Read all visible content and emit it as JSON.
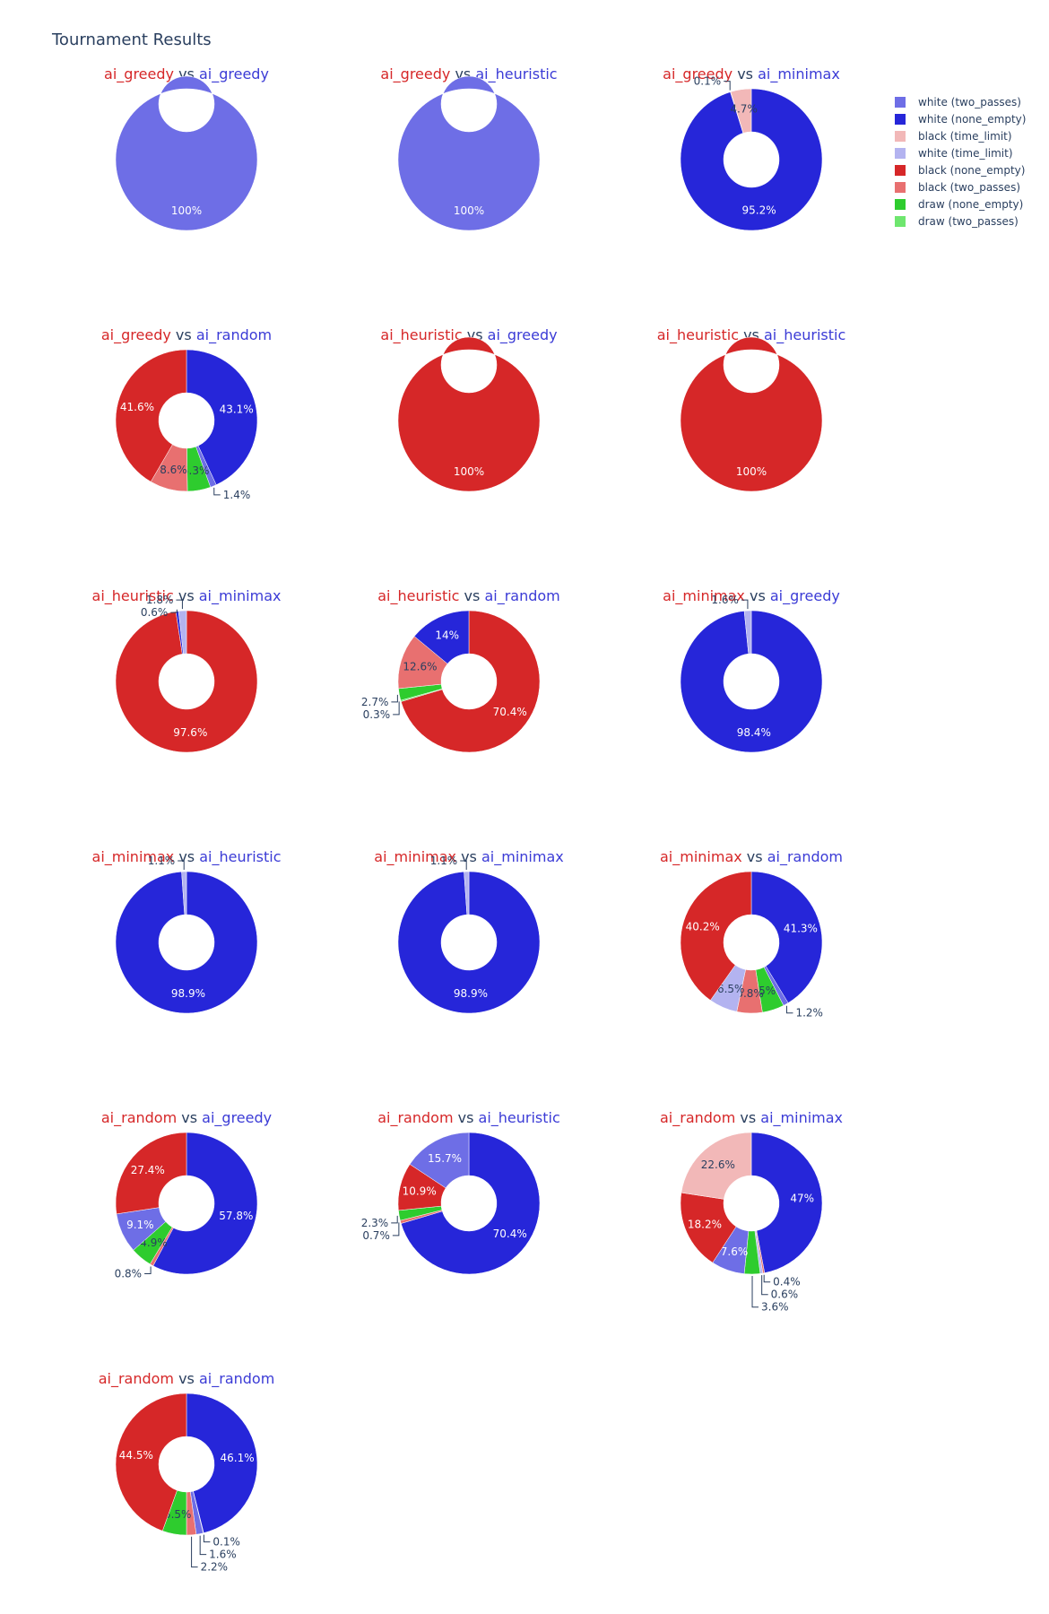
{
  "chart_data": {
    "type": "pie",
    "hole": true,
    "title": "Tournament Results",
    "vs_word": "vs",
    "colors": {
      "black_player": "#d62728",
      "white_player": "#3b3bd6",
      "vs": "#2a3f5f"
    },
    "legend_position": "top-right",
    "legend": [
      {
        "name": "white (two_passes)",
        "color": "#6e6ee6"
      },
      {
        "name": "white (none_empty)",
        "color": "#2626d9"
      },
      {
        "name": "black (time_limit)",
        "color": "#f2b8b8"
      },
      {
        "name": "white (time_limit)",
        "color": "#b3b3f0"
      },
      {
        "name": "black (none_empty)",
        "color": "#d62728"
      },
      {
        "name": "black (two_passes)",
        "color": "#e87070"
      },
      {
        "name": "draw (none_empty)",
        "color": "#2ecc2e"
      },
      {
        "name": "draw (two_passes)",
        "color": "#6ee66e"
      }
    ],
    "charts": [
      {
        "black": "ai_greedy",
        "white": "ai_greedy",
        "slices": [
          {
            "name": "white (two_passes)",
            "value": 100,
            "label": "100%"
          }
        ]
      },
      {
        "black": "ai_greedy",
        "white": "ai_heuristic",
        "slices": [
          {
            "name": "white (two_passes)",
            "value": 100,
            "label": "100%"
          }
        ]
      },
      {
        "black": "ai_greedy",
        "white": "ai_minimax",
        "slices": [
          {
            "name": "white (none_empty)",
            "value": 95.2,
            "label": "95.2%"
          },
          {
            "name": "black (none_empty)",
            "value": 0.1,
            "label": "0.1%"
          },
          {
            "name": "black (time_limit)",
            "value": 4.7,
            "label": "4.7%"
          }
        ]
      },
      {
        "black": "ai_greedy",
        "white": "ai_random",
        "slices": [
          {
            "name": "white (none_empty)",
            "value": 43.1,
            "label": "43.1%"
          },
          {
            "name": "white (two_passes)",
            "value": 1.4,
            "label": "1.4%"
          },
          {
            "name": "draw (none_empty)",
            "value": 5.3,
            "label": "5.3%"
          },
          {
            "name": "black (two_passes)",
            "value": 8.6,
            "label": "8.6%"
          },
          {
            "name": "black (none_empty)",
            "value": 41.6,
            "label": "41.6%"
          }
        ]
      },
      {
        "black": "ai_heuristic",
        "white": "ai_greedy",
        "slices": [
          {
            "name": "black (none_empty)",
            "value": 100,
            "label": "100%"
          }
        ]
      },
      {
        "black": "ai_heuristic",
        "white": "ai_heuristic",
        "slices": [
          {
            "name": "black (none_empty)",
            "value": 100,
            "label": "100%"
          }
        ]
      },
      {
        "black": "ai_heuristic",
        "white": "ai_minimax",
        "slices": [
          {
            "name": "black (none_empty)",
            "value": 97.6,
            "label": "97.6%"
          },
          {
            "name": "white (none_empty)",
            "value": 0.6,
            "label": "0.6%"
          },
          {
            "name": "white (time_limit)",
            "value": 1.8,
            "label": "1.8%"
          }
        ]
      },
      {
        "black": "ai_heuristic",
        "white": "ai_random",
        "slices": [
          {
            "name": "black (none_empty)",
            "value": 70.4,
            "label": "70.4%"
          },
          {
            "name": "draw (two_passes)",
            "value": 0.3,
            "label": "0.3%"
          },
          {
            "name": "draw (none_empty)",
            "value": 2.7,
            "label": "2.7%"
          },
          {
            "name": "black (two_passes)",
            "value": 12.6,
            "label": "12.6%"
          },
          {
            "name": "white (none_empty)",
            "value": 14,
            "label": "14%"
          }
        ]
      },
      {
        "black": "ai_minimax",
        "white": "ai_greedy",
        "slices": [
          {
            "name": "white (none_empty)",
            "value": 98.4,
            "label": "98.4%"
          },
          {
            "name": "white (time_limit)",
            "value": 1.6,
            "label": "1.6%"
          }
        ]
      },
      {
        "black": "ai_minimax",
        "white": "ai_heuristic",
        "slices": [
          {
            "name": "white (none_empty)",
            "value": 98.9,
            "label": "98.9%"
          },
          {
            "name": "white (time_limit)",
            "value": 1.1,
            "label": "1.1%"
          }
        ]
      },
      {
        "black": "ai_minimax",
        "white": "ai_minimax",
        "slices": [
          {
            "name": "white (none_empty)",
            "value": 98.9,
            "label": "98.9%"
          },
          {
            "name": "white (time_limit)",
            "value": 1.1,
            "label": "1.1%"
          }
        ]
      },
      {
        "black": "ai_minimax",
        "white": "ai_random",
        "slices": [
          {
            "name": "white (none_empty)",
            "value": 41.3,
            "label": "41.3%"
          },
          {
            "name": "white (two_passes)",
            "value": 1.2,
            "label": "1.2%"
          },
          {
            "name": "draw (none_empty)",
            "value": 5,
            "label": "5%"
          },
          {
            "name": "black (two_passes)",
            "value": 5.8,
            "label": "5.8%"
          },
          {
            "name": "white (time_limit)",
            "value": 6.5,
            "label": "6.5%"
          },
          {
            "name": "black (none_empty)",
            "value": 40.2,
            "label": "40.2%"
          }
        ]
      },
      {
        "black": "ai_random",
        "white": "ai_greedy",
        "slices": [
          {
            "name": "white (none_empty)",
            "value": 57.8,
            "label": "57.8%"
          },
          {
            "name": "black (two_passes)",
            "value": 0.8,
            "label": "0.8%"
          },
          {
            "name": "draw (none_empty)",
            "value": 4.9,
            "label": "4.9%"
          },
          {
            "name": "white (two_passes)",
            "value": 9.1,
            "label": "9.1%"
          },
          {
            "name": "black (none_empty)",
            "value": 27.4,
            "label": "27.4%"
          }
        ]
      },
      {
        "black": "ai_random",
        "white": "ai_heuristic",
        "slices": [
          {
            "name": "white (none_empty)",
            "value": 70.4,
            "label": "70.4%"
          },
          {
            "name": "black (two_passes)",
            "value": 0.7,
            "label": "0.7%"
          },
          {
            "name": "draw (none_empty)",
            "value": 2.3,
            "label": "2.3%"
          },
          {
            "name": "black (none_empty)",
            "value": 10.9,
            "label": "10.9%"
          },
          {
            "name": "white (two_passes)",
            "value": 15.7,
            "label": "15.7%"
          }
        ]
      },
      {
        "black": "ai_random",
        "white": "ai_minimax",
        "slices": [
          {
            "name": "white (none_empty)",
            "value": 47,
            "label": "47%"
          },
          {
            "name": "black (two_passes)",
            "value": 0.4,
            "label": "0.4%"
          },
          {
            "name": "white (time_limit)",
            "value": 0.6,
            "label": "0.6%"
          },
          {
            "name": "draw (none_empty)",
            "value": 3.6,
            "label": "3.6%"
          },
          {
            "name": "white (two_passes)",
            "value": 7.6,
            "label": "7.6%"
          },
          {
            "name": "black (none_empty)",
            "value": 18.2,
            "label": "18.2%"
          },
          {
            "name": "black (time_limit)",
            "value": 22.6,
            "label": "22.6%"
          }
        ]
      },
      {
        "black": "ai_random",
        "white": "ai_random",
        "slices": [
          {
            "name": "white (none_empty)",
            "value": 46.1,
            "label": "46.1%"
          },
          {
            "name": "white (time_limit)",
            "value": 0.1,
            "label": "0.1%"
          },
          {
            "name": "white (two_passes)",
            "value": 1.6,
            "label": "1.6%"
          },
          {
            "name": "black (two_passes)",
            "value": 2.2,
            "label": "2.2%"
          },
          {
            "name": "draw (none_empty)",
            "value": 5.5,
            "label": "5.5%"
          },
          {
            "name": "black (none_empty)",
            "value": 44.5,
            "label": "44.5%"
          }
        ]
      }
    ]
  }
}
